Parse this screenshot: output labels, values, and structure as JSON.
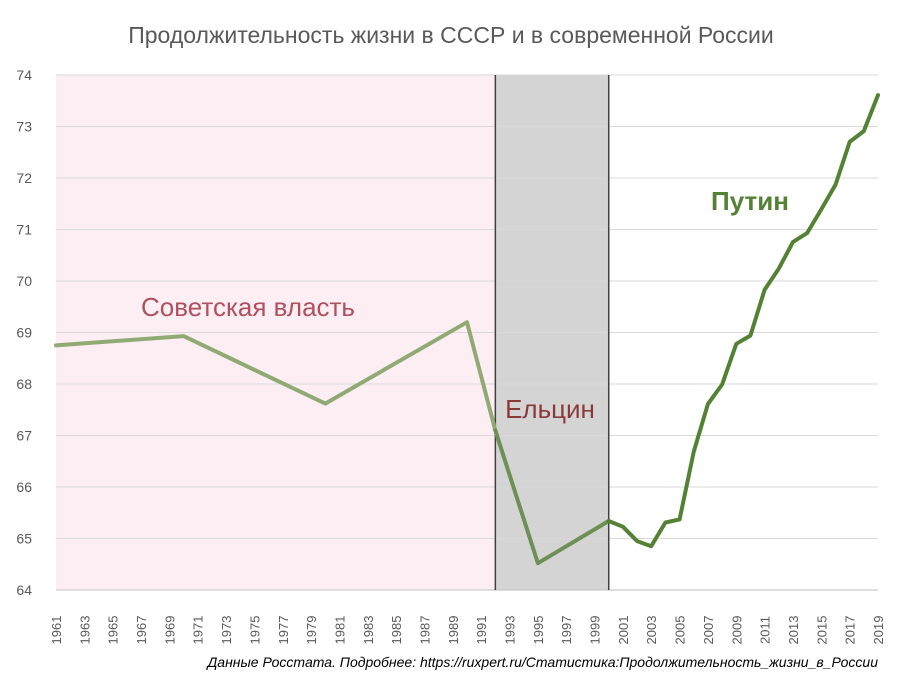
{
  "chart_data": {
    "type": "line",
    "title": "Продолжительность жизни в СССР и в современной России",
    "xlabel": "",
    "ylabel": "",
    "ylim": [
      64,
      74
    ],
    "xlim": [
      1961,
      2019
    ],
    "y_ticks": [
      "64",
      "65",
      "66",
      "67",
      "68",
      "69",
      "70",
      "71",
      "72",
      "73",
      "74"
    ],
    "x_ticks": [
      "1961",
      "1963",
      "1965",
      "1967",
      "1969",
      "1971",
      "1973",
      "1975",
      "1977",
      "1979",
      "1981",
      "1983",
      "1985",
      "1987",
      "1989",
      "1991",
      "1993",
      "1995",
      "1997",
      "1999",
      "2001",
      "2003",
      "2005",
      "2007",
      "2009",
      "2011",
      "2013",
      "2015",
      "2017",
      "2019"
    ],
    "grid": true,
    "periods": [
      {
        "label": "Советская власть",
        "start": 1961,
        "end": 1992,
        "shade": "#fdeef3",
        "label_color": "#b0505e"
      },
      {
        "label": "Ельцин",
        "start": 1992,
        "end": 2000,
        "shade": "#d4d4d4",
        "label_color": "#8b3a3a"
      },
      {
        "label": "Путин",
        "start": 2000,
        "end": 2019,
        "shade": "#ffffff",
        "label_color": "#548235"
      }
    ],
    "series": [
      {
        "color": "#8faa73",
        "x": [
          1961,
          1970,
          1980,
          1990,
          1992
        ],
        "y": [
          68.75,
          68.93,
          67.62,
          69.2,
          67.1
        ]
      },
      {
        "color": "#6e8f55",
        "x": [
          1992,
          1995,
          2000
        ],
        "y": [
          67.1,
          64.52,
          65.34
        ]
      },
      {
        "color": "#548235",
        "x": [
          2000,
          2001,
          2002,
          2003,
          2004,
          2005,
          2006,
          2007,
          2008,
          2009,
          2010,
          2011,
          2012,
          2013,
          2014,
          2015,
          2016,
          2017,
          2018,
          2019
        ],
        "y": [
          65.34,
          65.23,
          64.95,
          64.85,
          65.31,
          65.37,
          66.69,
          67.61,
          67.99,
          68.78,
          68.94,
          69.83,
          70.24,
          70.76,
          70.93,
          71.39,
          71.87,
          72.7,
          72.91,
          73.61
        ]
      }
    ],
    "source_note": "Данные Росстата. Подробнее: https://ruxpert.ru/Статистика:Продолжительность_жизни_в_России"
  }
}
